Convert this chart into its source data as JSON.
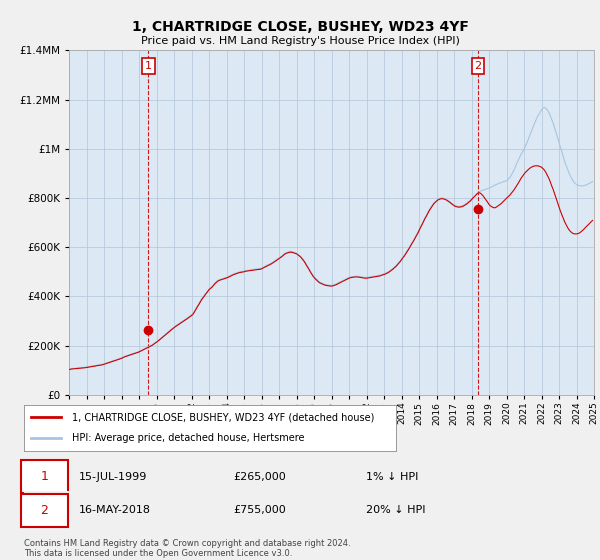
{
  "title": "1, CHARTRIDGE CLOSE, BUSHEY, WD23 4YF",
  "subtitle": "Price paid vs. HM Land Registry's House Price Index (HPI)",
  "legend_line1": "1, CHARTRIDGE CLOSE, BUSHEY, WD23 4YF (detached house)",
  "legend_line2": "HPI: Average price, detached house, Hertsmere",
  "annotation1_date": "15-JUL-1999",
  "annotation1_price": "£265,000",
  "annotation1_note": "1% ↓ HPI",
  "annotation2_date": "16-MAY-2018",
  "annotation2_price": "£755,000",
  "annotation2_note": "20% ↓ HPI",
  "footer": "Contains HM Land Registry data © Crown copyright and database right 2024.\nThis data is licensed under the Open Government Licence v3.0.",
  "hpi_color": "#a8c4e0",
  "price_color": "#cc0000",
  "plot_bg_color": "#dce9f5",
  "background_color": "#f0f0f0",
  "grid_color": "#b0c4d8",
  "annotation_color": "#cc0000",
  "ylim": [
    0,
    1400000
  ],
  "yticks": [
    0,
    200000,
    400000,
    600000,
    800000,
    1000000,
    1200000,
    1400000
  ],
  "sale1_year": 1999.54,
  "sale1_price": 265000,
  "sale2_year": 2018.37,
  "sale2_price": 755000,
  "hpi_x": [
    1995.0,
    1995.08,
    1995.17,
    1995.25,
    1995.33,
    1995.42,
    1995.5,
    1995.58,
    1995.67,
    1995.75,
    1995.83,
    1995.92,
    1996.0,
    1996.08,
    1996.17,
    1996.25,
    1996.33,
    1996.42,
    1996.5,
    1996.58,
    1996.67,
    1996.75,
    1996.83,
    1996.92,
    1997.0,
    1997.08,
    1997.17,
    1997.25,
    1997.33,
    1997.42,
    1997.5,
    1997.58,
    1997.67,
    1997.75,
    1997.83,
    1997.92,
    1998.0,
    1998.08,
    1998.17,
    1998.25,
    1998.33,
    1998.42,
    1998.5,
    1998.58,
    1998.67,
    1998.75,
    1998.83,
    1998.92,
    1999.0,
    1999.08,
    1999.17,
    1999.25,
    1999.33,
    1999.42,
    1999.5,
    1999.58,
    1999.67,
    1999.75,
    1999.83,
    1999.92,
    2000.0,
    2000.08,
    2000.17,
    2000.25,
    2000.33,
    2000.42,
    2000.5,
    2000.58,
    2000.67,
    2000.75,
    2000.83,
    2000.92,
    2001.0,
    2001.08,
    2001.17,
    2001.25,
    2001.33,
    2001.42,
    2001.5,
    2001.58,
    2001.67,
    2001.75,
    2001.83,
    2001.92,
    2002.0,
    2002.08,
    2002.17,
    2002.25,
    2002.33,
    2002.42,
    2002.5,
    2002.58,
    2002.67,
    2002.75,
    2002.83,
    2002.92,
    2003.0,
    2003.08,
    2003.17,
    2003.25,
    2003.33,
    2003.42,
    2003.5,
    2003.58,
    2003.67,
    2003.75,
    2003.83,
    2003.92,
    2004.0,
    2004.08,
    2004.17,
    2004.25,
    2004.33,
    2004.42,
    2004.5,
    2004.58,
    2004.67,
    2004.75,
    2004.83,
    2004.92,
    2005.0,
    2005.08,
    2005.17,
    2005.25,
    2005.33,
    2005.42,
    2005.5,
    2005.58,
    2005.67,
    2005.75,
    2005.83,
    2005.92,
    2006.0,
    2006.08,
    2006.17,
    2006.25,
    2006.33,
    2006.42,
    2006.5,
    2006.58,
    2006.67,
    2006.75,
    2006.83,
    2006.92,
    2007.0,
    2007.08,
    2007.17,
    2007.25,
    2007.33,
    2007.42,
    2007.5,
    2007.58,
    2007.67,
    2007.75,
    2007.83,
    2007.92,
    2008.0,
    2008.08,
    2008.17,
    2008.25,
    2008.33,
    2008.42,
    2008.5,
    2008.58,
    2008.67,
    2008.75,
    2008.83,
    2008.92,
    2009.0,
    2009.08,
    2009.17,
    2009.25,
    2009.33,
    2009.42,
    2009.5,
    2009.58,
    2009.67,
    2009.75,
    2009.83,
    2009.92,
    2010.0,
    2010.08,
    2010.17,
    2010.25,
    2010.33,
    2010.42,
    2010.5,
    2010.58,
    2010.67,
    2010.75,
    2010.83,
    2010.92,
    2011.0,
    2011.08,
    2011.17,
    2011.25,
    2011.33,
    2011.42,
    2011.5,
    2011.58,
    2011.67,
    2011.75,
    2011.83,
    2011.92,
    2012.0,
    2012.08,
    2012.17,
    2012.25,
    2012.33,
    2012.42,
    2012.5,
    2012.58,
    2012.67,
    2012.75,
    2012.83,
    2012.92,
    2013.0,
    2013.08,
    2013.17,
    2013.25,
    2013.33,
    2013.42,
    2013.5,
    2013.58,
    2013.67,
    2013.75,
    2013.83,
    2013.92,
    2014.0,
    2014.08,
    2014.17,
    2014.25,
    2014.33,
    2014.42,
    2014.5,
    2014.58,
    2014.67,
    2014.75,
    2014.83,
    2014.92,
    2015.0,
    2015.08,
    2015.17,
    2015.25,
    2015.33,
    2015.42,
    2015.5,
    2015.58,
    2015.67,
    2015.75,
    2015.83,
    2015.92,
    2016.0,
    2016.08,
    2016.17,
    2016.25,
    2016.33,
    2016.42,
    2016.5,
    2016.58,
    2016.67,
    2016.75,
    2016.83,
    2016.92,
    2017.0,
    2017.08,
    2017.17,
    2017.25,
    2017.33,
    2017.42,
    2017.5,
    2017.58,
    2017.67,
    2017.75,
    2017.83,
    2017.92,
    2018.0,
    2018.08,
    2018.17,
    2018.25,
    2018.33,
    2018.42,
    2018.5,
    2018.58,
    2018.67,
    2018.75,
    2018.83,
    2018.92,
    2019.0,
    2019.08,
    2019.17,
    2019.25,
    2019.33,
    2019.42,
    2019.5,
    2019.58,
    2019.67,
    2019.75,
    2019.83,
    2019.92,
    2020.0,
    2020.08,
    2020.17,
    2020.25,
    2020.33,
    2020.42,
    2020.5,
    2020.58,
    2020.67,
    2020.75,
    2020.83,
    2020.92,
    2021.0,
    2021.08,
    2021.17,
    2021.25,
    2021.33,
    2021.42,
    2021.5,
    2021.58,
    2021.67,
    2021.75,
    2021.83,
    2021.92,
    2022.0,
    2022.08,
    2022.17,
    2022.25,
    2022.33,
    2022.42,
    2022.5,
    2022.58,
    2022.67,
    2022.75,
    2022.83,
    2022.92,
    2023.0,
    2023.08,
    2023.17,
    2023.25,
    2023.33,
    2023.42,
    2023.5,
    2023.58,
    2023.67,
    2023.75,
    2023.83,
    2023.92,
    2024.0,
    2024.08,
    2024.17,
    2024.25,
    2024.33,
    2024.42,
    2024.5,
    2024.58,
    2024.67,
    2024.75,
    2024.83,
    2024.92
  ],
  "hpi_base_values": [
    105000,
    106000,
    107000,
    107500,
    108000,
    108500,
    109000,
    109500,
    110000,
    110500,
    111000,
    112000,
    113000,
    114000,
    115000,
    116000,
    117000,
    118000,
    119000,
    120000,
    121000,
    122000,
    123000,
    124000,
    126000,
    128000,
    130000,
    132000,
    134000,
    136000,
    138000,
    140000,
    142000,
    144000,
    146000,
    148000,
    150000,
    153000,
    156000,
    158000,
    160000,
    162000,
    164000,
    166000,
    168000,
    170000,
    172000,
    174000,
    176000,
    179000,
    182000,
    185000,
    188000,
    191000,
    194000,
    197000,
    200000,
    203000,
    207000,
    211000,
    215000,
    220000,
    225000,
    230000,
    235000,
    240000,
    245000,
    250000,
    255000,
    260000,
    265000,
    270000,
    275000,
    280000,
    284000,
    288000,
    292000,
    296000,
    300000,
    304000,
    308000,
    312000,
    316000,
    320000,
    325000,
    330000,
    340000,
    350000,
    360000,
    370000,
    380000,
    390000,
    398000,
    406000,
    414000,
    422000,
    430000,
    435000,
    440000,
    447000,
    454000,
    460000,
    465000,
    468000,
    470000,
    472000,
    474000,
    476000,
    478000,
    480000,
    483000,
    486000,
    489000,
    492000,
    494000,
    496000,
    498000,
    500000,
    501000,
    502000,
    503000,
    505000,
    506000,
    507000,
    508000,
    509000,
    510000,
    511000,
    511500,
    512000,
    512500,
    513000,
    515000,
    518000,
    521000,
    524000,
    527000,
    530000,
    533000,
    536000,
    540000,
    544000,
    548000,
    552000,
    556000,
    560000,
    565000,
    570000,
    575000,
    578000,
    580000,
    582000,
    583000,
    582000,
    580000,
    578000,
    576000,
    572000,
    567000,
    562000,
    555000,
    547000,
    538000,
    528000,
    518000,
    508000,
    498000,
    488000,
    480000,
    474000,
    468000,
    462000,
    458000,
    455000,
    452000,
    450000,
    448000,
    447000,
    446000,
    445000,
    445000,
    446000,
    448000,
    450000,
    453000,
    456000,
    459000,
    462000,
    465000,
    468000,
    471000,
    474000,
    477000,
    479000,
    480000,
    481000,
    482000,
    482000,
    482000,
    481000,
    480000,
    479000,
    478000,
    477000,
    477000,
    478000,
    479000,
    480000,
    481000,
    482000,
    483000,
    484000,
    485000,
    486000,
    488000,
    490000,
    492000,
    494000,
    497000,
    500000,
    504000,
    508000,
    513000,
    518000,
    524000,
    530000,
    537000,
    544000,
    552000,
    560000,
    568000,
    577000,
    586000,
    596000,
    606000,
    616000,
    626000,
    636000,
    647000,
    658000,
    670000,
    682000,
    694000,
    706000,
    718000,
    729000,
    740000,
    751000,
    761000,
    770000,
    778000,
    785000,
    790000,
    795000,
    798000,
    800000,
    800000,
    799000,
    797000,
    794000,
    790000,
    786000,
    781000,
    776000,
    772000,
    769000,
    767000,
    766000,
    766000,
    767000,
    769000,
    772000,
    776000,
    780000,
    785000,
    790000,
    795000,
    800000,
    806000,
    812000,
    818000,
    824000,
    828000,
    830000,
    832000,
    834000,
    836000,
    838000,
    840000,
    843000,
    846000,
    849000,
    852000,
    855000,
    858000,
    860000,
    862000,
    864000,
    866000,
    868000,
    870000,
    875000,
    882000,
    890000,
    900000,
    912000,
    926000,
    940000,
    953000,
    966000,
    978000,
    988000,
    998000,
    1010000,
    1025000,
    1040000,
    1055000,
    1070000,
    1085000,
    1100000,
    1115000,
    1128000,
    1138000,
    1148000,
    1158000,
    1165000,
    1168000,
    1165000,
    1158000,
    1148000,
    1135000,
    1120000,
    1103000,
    1085000,
    1066000,
    1046000,
    1026000,
    1006000,
    986000,
    966000,
    947000,
    930000,
    915000,
    900000,
    887000,
    876000,
    867000,
    860000,
    855000,
    852000,
    850000,
    849000,
    849000,
    850000,
    852000,
    854000,
    857000,
    860000,
    863000,
    867000
  ],
  "price_base_values": [
    103000,
    104000,
    105000,
    105500,
    106000,
    106500,
    107000,
    107500,
    108000,
    108500,
    109000,
    110000,
    111000,
    112000,
    113000,
    114000,
    115000,
    116000,
    117000,
    118000,
    119000,
    120000,
    121000,
    122000,
    124000,
    126000,
    128000,
    130000,
    132000,
    134000,
    136000,
    138000,
    140000,
    142000,
    144000,
    146000,
    148000,
    151000,
    154000,
    156000,
    158000,
    160000,
    162000,
    164000,
    166000,
    168000,
    170000,
    172000,
    174000,
    177000,
    180000,
    183000,
    186000,
    189000,
    192000,
    195000,
    198000,
    201000,
    205000,
    209000,
    213000,
    218000,
    223000,
    228000,
    233000,
    238000,
    243000,
    248000,
    253000,
    258000,
    263000,
    268000,
    273000,
    277000,
    281000,
    285000,
    289000,
    293000,
    297000,
    301000,
    305000,
    309000,
    313000,
    317000,
    322000,
    327000,
    337000,
    347000,
    357000,
    367000,
    377000,
    387000,
    395000,
    403000,
    411000,
    419000,
    427000,
    432000,
    437000,
    444000,
    451000,
    457000,
    462000,
    465000,
    467000,
    469000,
    471000,
    473000,
    475000,
    477000,
    480000,
    483000,
    486000,
    489000,
    491000,
    493000,
    495000,
    497000,
    498000,
    499000,
    500000,
    502000,
    503000,
    504000,
    505000,
    506000,
    507000,
    508000,
    508500,
    509000,
    509500,
    510000,
    512000,
    515000,
    518000,
    521000,
    524000,
    527000,
    530000,
    533000,
    537000,
    541000,
    545000,
    549000,
    553000,
    557000,
    562000,
    567000,
    572000,
    575000,
    577000,
    579000,
    580000,
    579000,
    577000,
    575000,
    573000,
    569000,
    564000,
    559000,
    552000,
    544000,
    535000,
    525000,
    515000,
    505000,
    495000,
    485000,
    477000,
    471000,
    465000,
    459000,
    455000,
    452000,
    449000,
    447000,
    445000,
    444000,
    443000,
    442000,
    442000,
    443000,
    445000,
    447000,
    450000,
    453000,
    456000,
    459000,
    462000,
    465000,
    468000,
    471000,
    474000,
    476000,
    477000,
    478000,
    479000,
    479000,
    479000,
    478000,
    477000,
    476000,
    475000,
    474000,
    474000,
    475000,
    476000,
    477000,
    478000,
    479000,
    480000,
    481000,
    482000,
    483000,
    485000,
    487000,
    489000,
    491000,
    494000,
    497000,
    501000,
    505000,
    510000,
    515000,
    521000,
    527000,
    534000,
    541000,
    549000,
    557000,
    565000,
    574000,
    583000,
    593000,
    603000,
    613000,
    623000,
    633000,
    644000,
    655000,
    667000,
    679000,
    691000,
    703000,
    715000,
    726000,
    737000,
    748000,
    758000,
    767000,
    775000,
    782000,
    787000,
    792000,
    795000,
    797000,
    797000,
    796000,
    794000,
    791000,
    787000,
    783000,
    778000,
    773000,
    769000,
    766000,
    764000,
    763000,
    763000,
    764000,
    766000,
    769000,
    773000,
    777000,
    782000,
    787000,
    793000,
    800000,
    806000,
    812000,
    818000,
    822000,
    820000,
    815000,
    808000,
    800000,
    792000,
    783000,
    774000,
    768000,
    764000,
    761000,
    760000,
    763000,
    767000,
    771000,
    776000,
    781000,
    787000,
    793000,
    799000,
    804000,
    810000,
    817000,
    824000,
    832000,
    841000,
    850000,
    860000,
    870000,
    880000,
    889000,
    897000,
    904000,
    910000,
    916000,
    921000,
    925000,
    928000,
    930000,
    931000,
    931000,
    930000,
    928000,
    925000,
    920000,
    913000,
    904000,
    893000,
    880000,
    866000,
    850000,
    834000,
    817000,
    800000,
    782000,
    764000,
    747000,
    731000,
    716000,
    702000,
    690000,
    679000,
    670000,
    663000,
    658000,
    655000,
    654000,
    654000,
    655000,
    658000,
    662000,
    667000,
    673000,
    679000,
    685000,
    691000,
    697000,
    703000,
    709000
  ]
}
